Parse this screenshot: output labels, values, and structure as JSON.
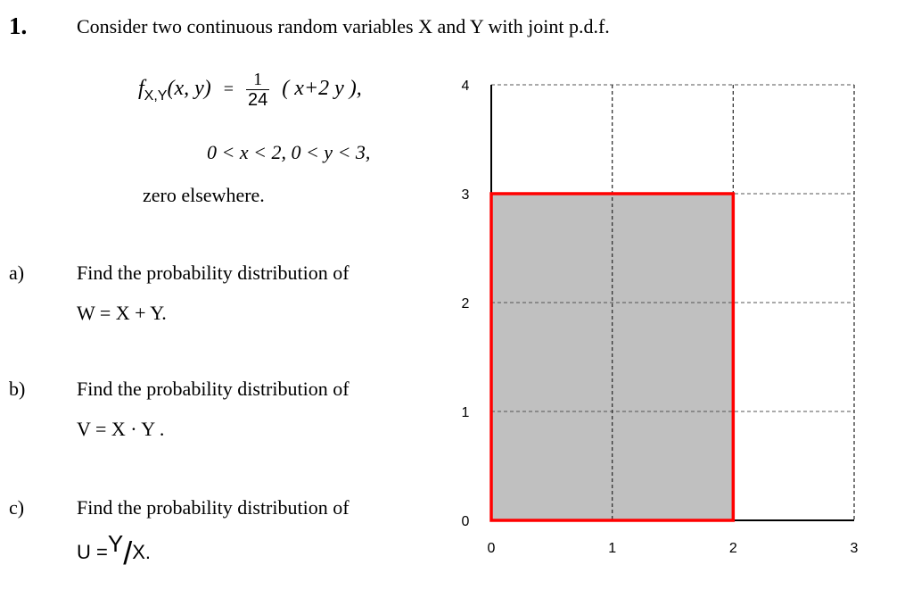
{
  "question": {
    "number": "1.",
    "statement": "Consider two continuous random variables  X  and  Y  with joint p.d.f.",
    "pdf": {
      "lhs_f": "f",
      "lhs_sub": "X,Y",
      "lhs_args": "(x, y)",
      "equals": "=",
      "coef_num": "1",
      "coef_den": "24",
      "expr": "( x+2 y ),",
      "support": "0 < x < 2,   0 < y < 3,",
      "elsewhere": "zero  elsewhere."
    }
  },
  "parts": [
    {
      "label": "a)",
      "prompt": "Find the probability distribution of",
      "expr": "W = X + Y."
    },
    {
      "label": "b)",
      "prompt": "Find the probability distribution of",
      "expr": "V = X · Y ."
    },
    {
      "label": "c)",
      "prompt": "Find the probability distribution of",
      "expr_prefix": "U =",
      "expr_num": "Y",
      "expr_slash": "/",
      "expr_den": "X",
      "expr_suffix": "."
    }
  ],
  "chart_data": {
    "type": "area",
    "x_ticks": [
      "0",
      "1",
      "2",
      "3"
    ],
    "y_ticks": [
      "0",
      "1",
      "2",
      "3",
      "4"
    ],
    "xlim": [
      0,
      3
    ],
    "ylim": [
      0,
      4
    ],
    "grid": "dashed",
    "region": {
      "x_min": 0,
      "x_max": 2,
      "y_min": 0,
      "y_max": 3,
      "fill": "#c0c0c0",
      "border": "#ff0000"
    }
  }
}
